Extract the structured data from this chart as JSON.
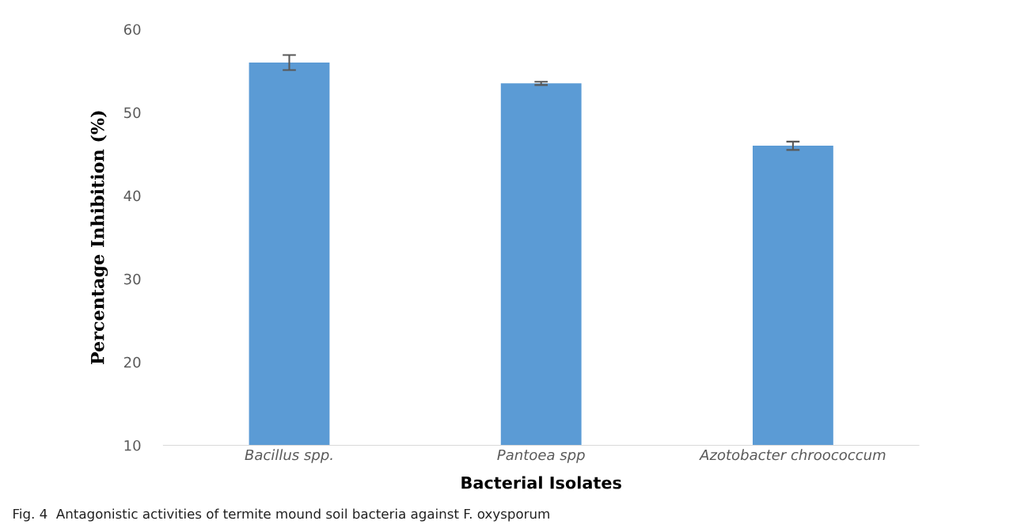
{
  "chart_data": {
    "type": "bar",
    "xlabel": "Bacterial Isolates",
    "ylabel": "Percentage Inhibition (%)",
    "categories": [
      "Bacillus spp.",
      "Pantoea spp",
      "Azotobacter chroococcum"
    ],
    "values": [
      56.0,
      53.5,
      46.0
    ],
    "errors": [
      0.9,
      0.2,
      0.5
    ],
    "color": "#5b9bd5",
    "ylim": [
      10,
      60
    ],
    "yticks": [
      10,
      20,
      30,
      40,
      50,
      60
    ],
    "grid": false,
    "legend": false,
    "annotations": [
      "Fig. 4  Antagonistic activities of termite mound soil bacteria against F. oxysporum"
    ]
  }
}
